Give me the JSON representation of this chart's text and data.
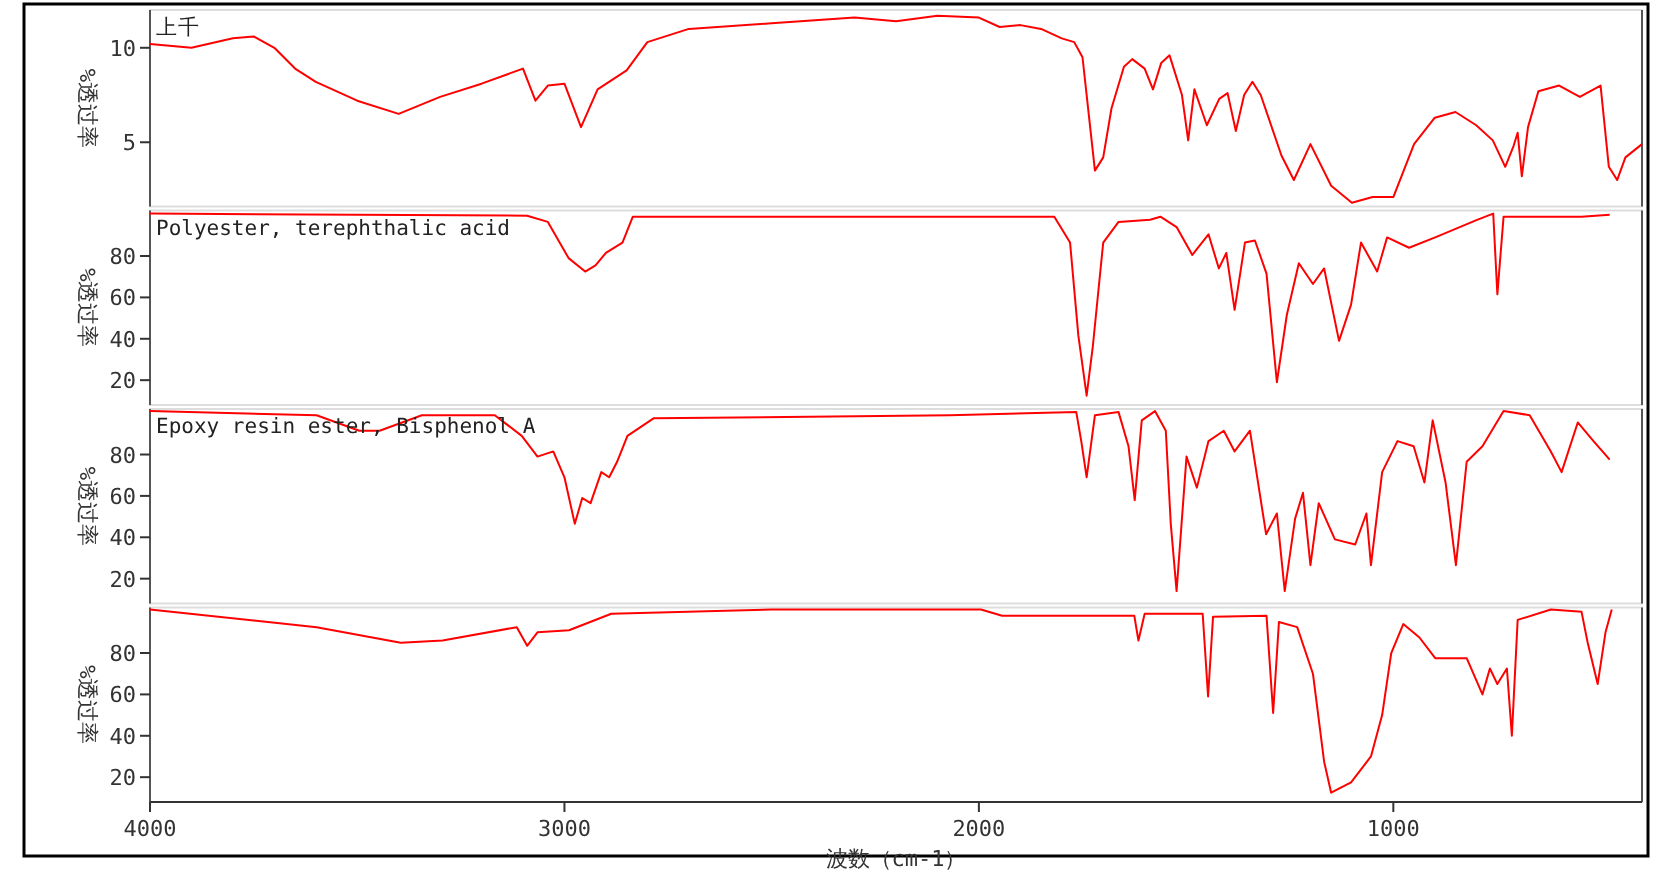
{
  "chart_data": [
    {
      "type": "line",
      "ylabel": "%透过率",
      "xlim": [
        4000,
        400
      ],
      "ylim": [
        1.6,
        12
      ],
      "yticks": [
        5,
        10
      ],
      "tick_labels": "y",
      "grid": false,
      "legend": false,
      "marker": "none",
      "line_style": "solid",
      "x": [
        4000,
        3900,
        3800,
        3750,
        3700,
        3650,
        3600,
        3500,
        3400,
        3300,
        3200,
        3100,
        3070,
        3040,
        3000,
        2960,
        2920,
        2850,
        2800,
        2700,
        2500,
        2300,
        2200,
        2100,
        2000,
        1950,
        1900,
        1850,
        1800,
        1770,
        1750,
        1730,
        1720,
        1700,
        1680,
        1650,
        1630,
        1600,
        1580,
        1560,
        1540,
        1510,
        1495,
        1480,
        1450,
        1420,
        1400,
        1380,
        1360,
        1340,
        1320,
        1270,
        1240,
        1200,
        1150,
        1100,
        1050,
        1000,
        950,
        900,
        850,
        800,
        760,
        730,
        710,
        700,
        690,
        675,
        650,
        600,
        550,
        500,
        480,
        460,
        440,
        400
      ],
      "series": [
        {
          "name": "上千",
          "color": "#ff0000",
          "values": [
            10.2,
            10.0,
            10.5,
            10.6,
            10.0,
            8.9,
            8.2,
            7.2,
            6.5,
            7.4,
            8.1,
            8.9,
            7.2,
            8.0,
            8.1,
            5.8,
            7.8,
            8.8,
            10.3,
            11.0,
            11.3,
            11.6,
            11.4,
            11.7,
            11.6,
            11.1,
            11.2,
            11.0,
            10.5,
            10.3,
            9.5,
            5.5,
            3.5,
            4.2,
            6.8,
            9.0,
            9.4,
            8.9,
            7.8,
            9.2,
            9.6,
            7.5,
            5.1,
            7.8,
            5.9,
            7.3,
            7.6,
            5.6,
            7.5,
            8.2,
            7.5,
            4.3,
            3.0,
            4.9,
            2.7,
            1.8,
            2.1,
            2.1,
            4.9,
            6.3,
            6.6,
            5.9,
            5.1,
            3.7,
            4.8,
            5.5,
            3.2,
            5.8,
            7.7,
            8.0,
            7.4,
            8.0,
            3.7,
            3.0,
            4.2,
            4.9
          ]
        }
      ]
    },
    {
      "type": "line",
      "ylabel": "%透过率",
      "xlim": [
        4000,
        400
      ],
      "ylim": [
        8,
        102
      ],
      "yticks": [
        20,
        40,
        60,
        80
      ],
      "tick_labels": "y",
      "grid": false,
      "legend": false,
      "marker": "none",
      "line_style": "solid",
      "x": [
        4000,
        3090,
        3040,
        2990,
        2950,
        2925,
        2900,
        2860,
        2835,
        1818,
        1780,
        1760,
        1740,
        1725,
        1700,
        1663,
        1587,
        1562,
        1523,
        1485,
        1446,
        1421,
        1403,
        1383,
        1358,
        1334,
        1306,
        1281,
        1257,
        1228,
        1194,
        1167,
        1131,
        1102,
        1078,
        1039,
        1015,
        962,
        899,
        798,
        759,
        749,
        734,
        546,
        478
      ],
      "series": [
        {
          "name": "Polyester, terephthalic acid",
          "color": "#ff0000",
          "values": [
            100.5,
            99.5,
            96.5,
            79,
            72.5,
            75.5,
            81.5,
            86.5,
            99,
            99,
            86.5,
            41.5,
            12.5,
            36.5,
            86.5,
            96.5,
            97.5,
            99,
            94,
            80.5,
            90.5,
            74,
            81.5,
            54,
            86.5,
            87.5,
            71.5,
            19,
            51.5,
            76.5,
            66.5,
            74,
            39,
            56.5,
            86.5,
            72.5,
            89,
            84,
            89,
            97.5,
            100.5,
            61.5,
            99,
            99,
            100
          ]
        }
      ]
    },
    {
      "type": "line",
      "ylabel": "%透过率",
      "xlim": [
        4000,
        400
      ],
      "ylim": [
        8,
        102
      ],
      "yticks": [
        20,
        40,
        60,
        80
      ],
      "tick_labels": "y",
      "grid": false,
      "legend": false,
      "marker": "none",
      "line_style": "solid",
      "x": [
        4000,
        3598,
        3495,
        3446,
        3344,
        3168,
        3103,
        3065,
        3027,
        3000,
        2975,
        2957,
        2937,
        2911,
        2892,
        2873,
        2848,
        2785,
        2070,
        1765,
        1753,
        1740,
        1720,
        1663,
        1639,
        1624,
        1607,
        1575,
        1549,
        1537,
        1523,
        1511,
        1499,
        1474,
        1446,
        1409,
        1383,
        1346,
        1307,
        1281,
        1262,
        1237,
        1218,
        1200,
        1180,
        1141,
        1092,
        1065,
        1054,
        1027,
        990,
        951,
        925,
        905,
        874,
        849,
        823,
        785,
        734,
        671,
        620,
        594,
        555,
        517,
        478
      ],
      "series": [
        {
          "name": "Epoxy resin ester, Bisphenol A",
          "color": "#ff0000",
          "values": [
            101,
            99,
            91.5,
            91.5,
            99,
            99,
            89,
            79,
            81.5,
            69,
            46.5,
            59,
            56.5,
            71.5,
            69,
            76.5,
            89,
            97.5,
            99,
            100.5,
            86.5,
            69,
            99,
            100.5,
            84,
            58,
            96.5,
            101,
            91.5,
            46.5,
            14,
            46.5,
            79,
            64,
            86.5,
            91.5,
            81.5,
            91.5,
            41.5,
            51.5,
            14,
            49,
            61.5,
            26.5,
            56.5,
            39,
            36.5,
            51.5,
            26.5,
            71.5,
            86.5,
            84,
            66.5,
            96.5,
            66.5,
            26.5,
            76.5,
            84,
            101,
            99,
            81.5,
            71.5,
            95.5,
            86.5,
            77.5
          ]
        }
      ]
    },
    {
      "type": "line",
      "ylabel": "%透过率",
      "xlabel": "波数（cm-1）",
      "xlim": [
        4000,
        400
      ],
      "ylim": [
        8,
        102
      ],
      "xticks": [
        4000,
        3000,
        2000,
        1000
      ],
      "yticks": [
        20,
        40,
        60,
        80
      ],
      "grid": false,
      "legend": false,
      "marker": "none",
      "line_style": "solid",
      "x": [
        4000,
        3598,
        3395,
        3294,
        3115,
        3090,
        3065,
        2989,
        2887,
        2500,
        1995,
        1944,
        1625,
        1615,
        1600,
        1460,
        1447,
        1435,
        1306,
        1290,
        1276,
        1232,
        1194,
        1167,
        1150,
        1102,
        1054,
        1027,
        1005,
        976,
        937,
        899,
        823,
        785,
        767,
        749,
        726,
        714,
        700,
        620,
        546,
        531,
        507,
        488,
        473
      ],
      "series": [
        {
          "color": "#ff0000",
          "values": [
            101,
            92.5,
            85,
            86,
            92.5,
            83.5,
            90,
            91,
            99,
            101,
            101,
            98,
            98,
            86,
            99,
            99,
            59,
            97.5,
            98,
            51,
            95,
            92.5,
            70,
            27.5,
            12.5,
            17.5,
            30,
            50,
            80,
            94,
            87.5,
            77.5,
            77.5,
            60,
            72.5,
            65,
            72.5,
            40,
            96,
            101,
            100,
            85,
            65,
            90,
            101
          ]
        }
      ]
    }
  ]
}
